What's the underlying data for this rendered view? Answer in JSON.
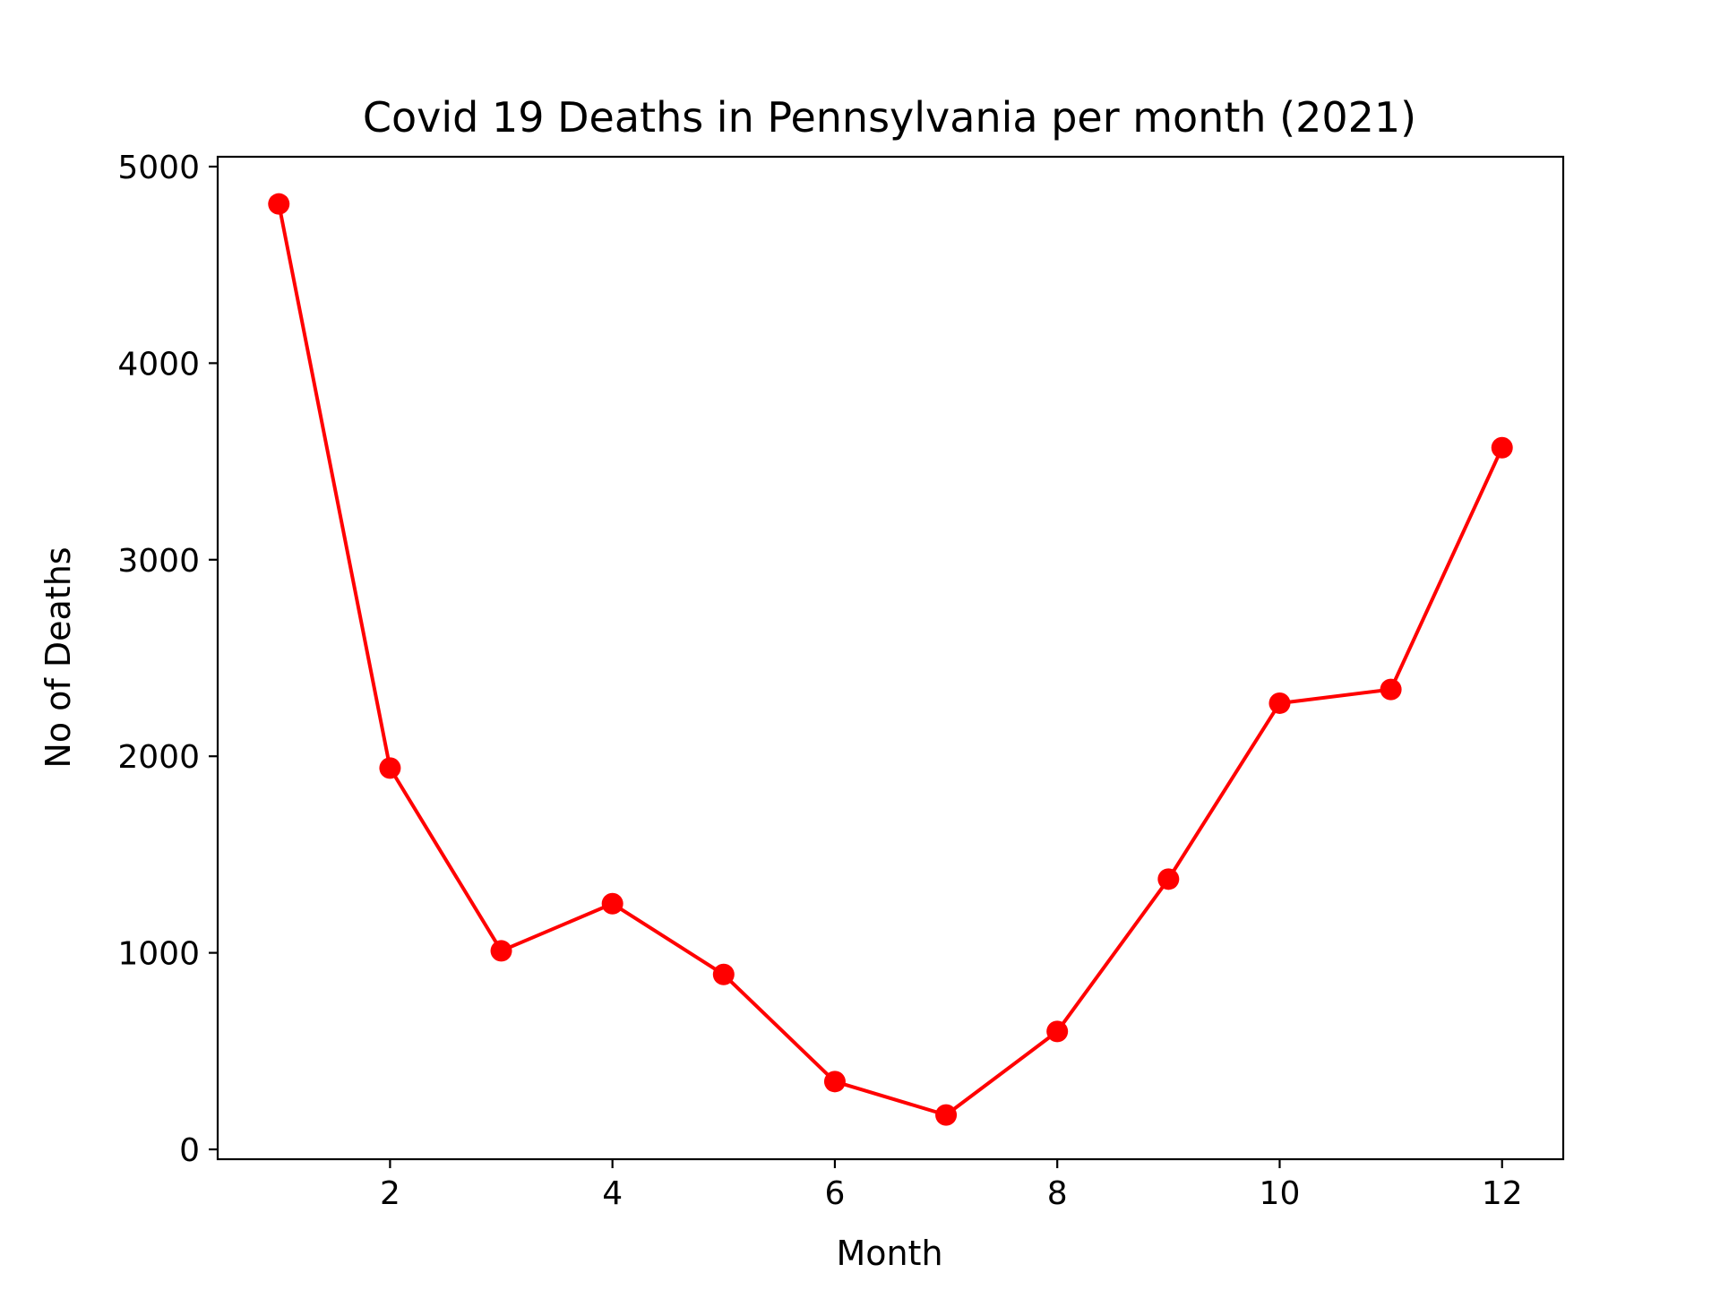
{
  "chart_data": {
    "type": "line",
    "title": "Covid 19 Deaths in Pennsylvania per month (2021)",
    "xlabel": "Month",
    "ylabel": "No of Deaths",
    "x": [
      1,
      2,
      3,
      4,
      5,
      6,
      7,
      8,
      9,
      10,
      11,
      12
    ],
    "series": [
      {
        "values": [
          4810,
          1940,
          1010,
          1250,
          890,
          345,
          175,
          600,
          1375,
          2270,
          2340,
          3570
        ],
        "color": "#ff0000",
        "marker": "circle"
      }
    ],
    "xlim": [
      0.45,
      12.55
    ],
    "ylim": [
      -50,
      5050
    ],
    "xticks": [
      2,
      4,
      6,
      8,
      10,
      12
    ],
    "yticks": [
      0,
      1000,
      2000,
      3000,
      4000,
      5000
    ],
    "grid": false,
    "legend": "none"
  }
}
